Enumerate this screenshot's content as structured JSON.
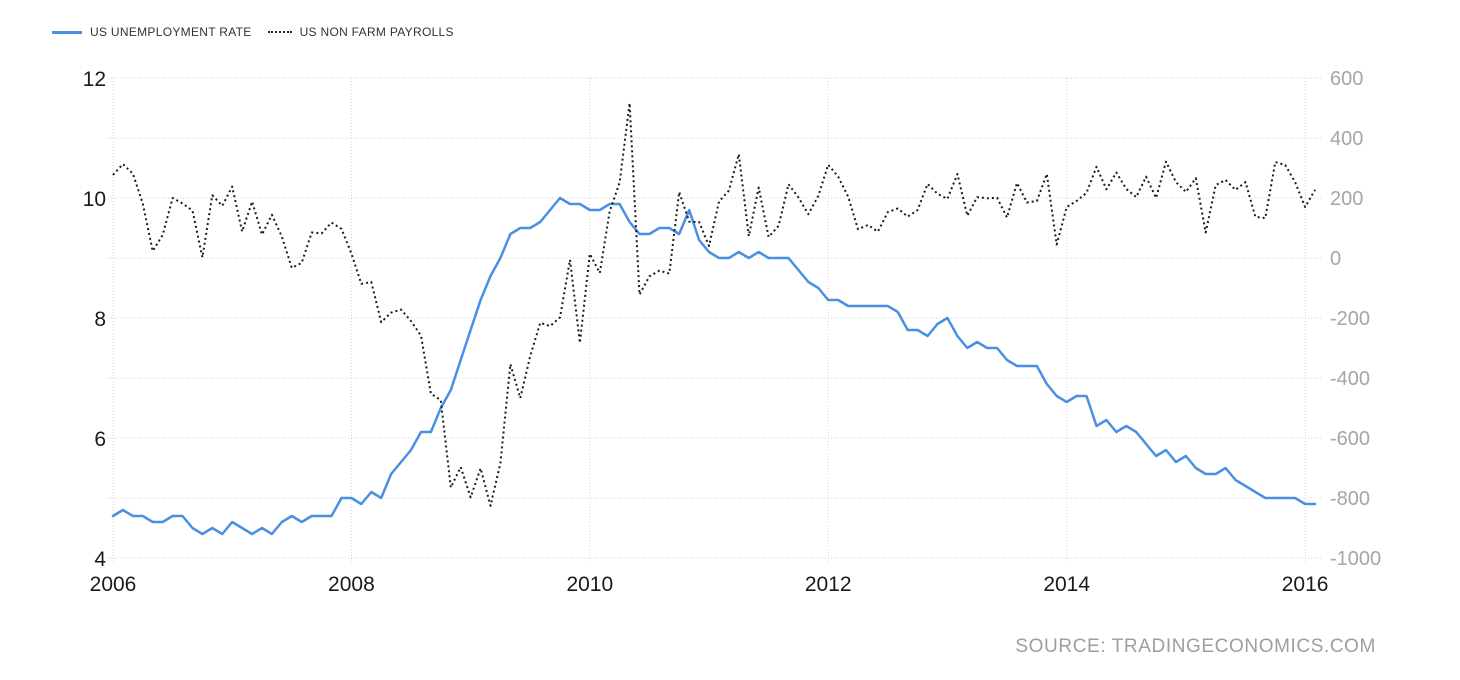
{
  "legend": {
    "items": [
      {
        "label": "US UNEMPLOYMENT RATE",
        "swatch": "solid-line",
        "color": "#4a90e2"
      },
      {
        "label": "US NON FARM PAYROLLS",
        "swatch": "dotted-line",
        "color": "#1a1a1a"
      }
    ]
  },
  "source": {
    "text": "SOURCE: TRADINGECONOMICS.COM",
    "color": "#9e9e9e"
  },
  "chart_data": {
    "type": "line",
    "title": "",
    "x_start": "2006-01",
    "x_end": "2016-02",
    "x_step": "month",
    "x_tick_labels": [
      "2006",
      "2008",
      "2010",
      "2012",
      "2014",
      "2016"
    ],
    "grid": true,
    "grid_color": "#d4d4d4",
    "legend_position": "top-left",
    "axes": {
      "left": {
        "ticks": [
          12,
          10,
          8,
          6,
          4
        ],
        "range": [
          4,
          12
        ],
        "grid_step": 1,
        "text_color": "#1a1a1a"
      },
      "right": {
        "ticks": [
          600,
          400,
          200,
          0,
          -200,
          -400,
          -600,
          -800,
          -1000
        ],
        "range": [
          -1000,
          600
        ],
        "text_color": "#a6a6a6"
      }
    },
    "series": [
      {
        "name": "US UNEMPLOYMENT RATE",
        "axis": "left",
        "line_style": "solid",
        "color": "#4a90e2",
        "values": [
          4.7,
          4.8,
          4.7,
          4.7,
          4.6,
          4.6,
          4.7,
          4.7,
          4.5,
          4.4,
          4.5,
          4.4,
          4.6,
          4.5,
          4.4,
          4.5,
          4.4,
          4.6,
          4.7,
          4.6,
          4.7,
          4.7,
          4.7,
          5.0,
          5.0,
          4.9,
          5.1,
          5.0,
          5.4,
          5.6,
          5.8,
          6.1,
          6.1,
          6.5,
          6.8,
          7.3,
          7.8,
          8.3,
          8.7,
          9.0,
          9.4,
          9.5,
          9.5,
          9.6,
          9.8,
          10.0,
          9.9,
          9.9,
          9.8,
          9.8,
          9.9,
          9.9,
          9.6,
          9.4,
          9.4,
          9.5,
          9.5,
          9.4,
          9.8,
          9.3,
          9.1,
          9.0,
          9.0,
          9.1,
          9.0,
          9.1,
          9.0,
          9.0,
          9.0,
          8.8,
          8.6,
          8.5,
          8.3,
          8.3,
          8.2,
          8.2,
          8.2,
          8.2,
          8.2,
          8.1,
          7.8,
          7.8,
          7.7,
          7.9,
          8.0,
          7.7,
          7.5,
          7.6,
          7.5,
          7.5,
          7.3,
          7.2,
          7.2,
          7.2,
          6.9,
          6.7,
          6.6,
          6.7,
          6.7,
          6.2,
          6.3,
          6.1,
          6.2,
          6.1,
          5.9,
          5.7,
          5.8,
          5.6,
          5.7,
          5.5,
          5.4,
          5.4,
          5.5,
          5.3,
          5.2,
          5.1,
          5.0,
          5.0,
          5.0,
          5.0,
          4.9,
          4.9
        ]
      },
      {
        "name": "US NON FARM PAYROLLS",
        "axis": "right",
        "line_style": "dotted",
        "color": "#1a1a1a",
        "values": [
          277,
          313,
          281,
          181,
          23,
          77,
          200,
          182,
          158,
          2,
          209,
          174,
          238,
          88,
          188,
          78,
          144,
          71,
          -33,
          -16,
          85,
          82,
          118,
          97,
          15,
          -86,
          -80,
          -214,
          -182,
          -172,
          -210,
          -259,
          -452,
          -474,
          -765,
          -697,
          -798,
          -701,
          -826,
          -684,
          -354,
          -467,
          -327,
          -216,
          -227,
          -198,
          -6,
          -283,
          14,
          -50,
          156,
          251,
          516,
          -122,
          -61,
          -42,
          -52,
          220,
          121,
          120,
          40,
          188,
          225,
          346,
          73,
          235,
          70,
          107,
          246,
          202,
          146,
          207,
          311,
          271,
          205,
          96,
          110,
          88,
          153,
          165,
          138,
          160,
          247,
          214,
          197,
          280,
          141,
          203,
          199,
          201,
          135,
          250,
          185,
          190,
          280,
          45,
          170,
          190,
          217,
          304,
          229,
          285,
          230,
          203,
          271,
          200,
          321,
          253,
          220,
          266,
          85,
          243,
          260,
          227,
          253,
          137,
          133,
          320,
          310,
          253,
          170,
          227
        ]
      }
    ]
  }
}
